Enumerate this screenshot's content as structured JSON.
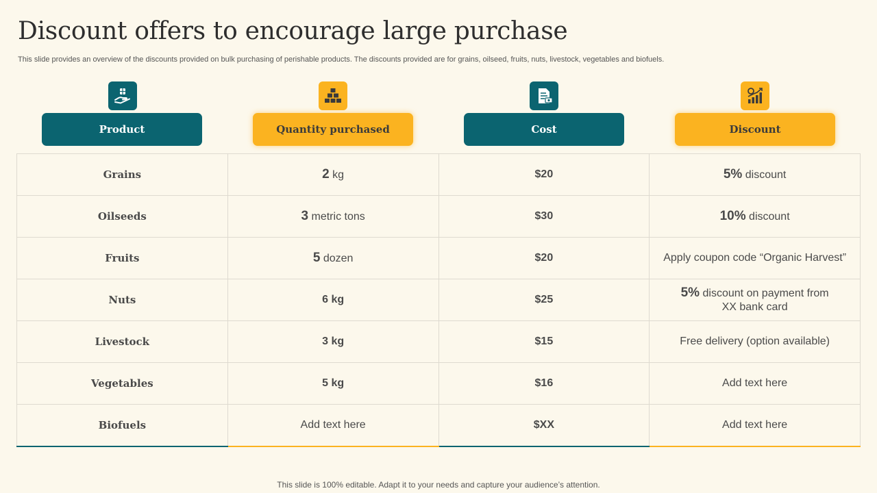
{
  "slide": {
    "title": "Discount offers to encourage large purchase",
    "subtitle": "This slide provides an overview of the discounts provided on bulk purchasing of perishable products. The discounts provided are for grains, oilseed, fruits, nuts, livestock, vegetables and biofuels.",
    "footer": "This slide is 100% editable. Adapt it to your needs and capture your audience’s attention."
  },
  "colors": {
    "teal": "#0b6470",
    "gold": "#fbb320",
    "background": "#fcf8ec"
  },
  "headers": [
    {
      "label": "Product",
      "icon": "hand-holding-box-icon",
      "color": "teal"
    },
    {
      "label": "Quantity purchased",
      "icon": "stacked-boxes-icon",
      "color": "gold"
    },
    {
      "label": "Cost",
      "icon": "invoice-document-icon",
      "color": "teal"
    },
    {
      "label": "Discount",
      "icon": "growth-chart-icon",
      "color": "gold"
    }
  ],
  "rows": [
    {
      "product": "Grains",
      "qty_num": "2",
      "qty_unit": " kg",
      "cost": "$20",
      "disc_num": "5%",
      "disc_text": " discount",
      "disc_text2": ""
    },
    {
      "product": "Oilseeds",
      "qty_num": "3",
      "qty_unit": " metric tons",
      "cost": "$30",
      "disc_num": "10%",
      "disc_text": " discount",
      "disc_text2": ""
    },
    {
      "product": "Fruits",
      "qty_num": "5",
      "qty_unit": " dozen",
      "cost": "$20",
      "disc_num": "",
      "disc_text": "Apply coupon code “Organic Harvest”",
      "disc_text2": ""
    },
    {
      "product": "Nuts",
      "qty_num": "6 kg",
      "qty_unit": "",
      "cost": "$25",
      "disc_num": "5%",
      "disc_text": " discount on payment from",
      "disc_text2": "XX bank card"
    },
    {
      "product": "Livestock",
      "qty_num": "3 kg",
      "qty_unit": "",
      "cost": "$15",
      "disc_num": "",
      "disc_text": "Free delivery (option available)",
      "disc_text2": ""
    },
    {
      "product": "Vegetables",
      "qty_num": "5 kg",
      "qty_unit": "",
      "cost": "$16",
      "disc_num": "",
      "disc_text": "Add text here",
      "disc_text2": ""
    },
    {
      "product": "Biofuels",
      "qty_num": "",
      "qty_unit": "Add text here",
      "cost": "$XX",
      "disc_num": "",
      "disc_text": "Add text here",
      "disc_text2": ""
    }
  ]
}
